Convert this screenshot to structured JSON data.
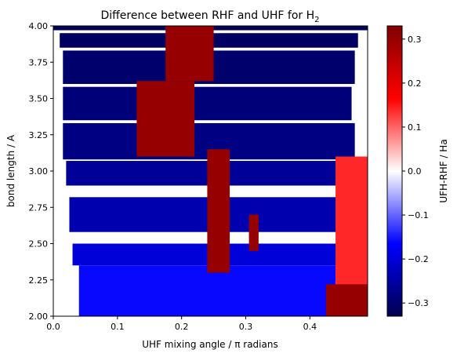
{
  "chart_data": {
    "type": "heatmap",
    "title_main": "Difference between RHF and UHF for H",
    "title_sub": "2",
    "xlabel": "UHF mixing angle / π radians",
    "ylabel": "bond length / A",
    "colorbar_label": "UFH-RHF / Ha",
    "xlim": [
      0.0,
      0.49
    ],
    "ylim": [
      2.0,
      4.0
    ],
    "xticks": [
      0.0,
      0.1,
      0.2,
      0.3,
      0.4
    ],
    "xtick_labels": [
      "0.0",
      "0.1",
      "0.2",
      "0.3",
      "0.4"
    ],
    "yticks": [
      2.0,
      2.25,
      2.5,
      2.75,
      3.0,
      3.25,
      3.5,
      3.75,
      4.0
    ],
    "ytick_labels": [
      "2.00",
      "2.25",
      "2.50",
      "2.75",
      "3.00",
      "3.25",
      "3.50",
      "3.75",
      "4.00"
    ],
    "colorbar_range": [
      -0.33,
      0.33
    ],
    "colorbar_ticks": [
      -0.3,
      -0.2,
      -0.1,
      0.0,
      0.1,
      0.2,
      0.3
    ],
    "colorbar_tick_labels": [
      "−0.3",
      "−0.2",
      "−0.1",
      "0.0",
      "0.1",
      "0.2",
      "0.3"
    ],
    "colormap": "seismic",
    "colormap_stops": [
      "#00004d",
      "#0000ff",
      "#ffffff",
      "#ff0000",
      "#800000"
    ],
    "regions": [
      {
        "x": [
          0.0,
          0.49
        ],
        "y": [
          3.97,
          4.0
        ],
        "value": -0.32
      },
      {
        "x": [
          0.01,
          0.475
        ],
        "y": [
          3.85,
          3.95
        ],
        "value": -0.31
      },
      {
        "x": [
          0.015,
          0.47
        ],
        "y": [
          3.6,
          3.83
        ],
        "value": -0.3
      },
      {
        "x": [
          0.015,
          0.465
        ],
        "y": [
          3.35,
          3.58
        ],
        "value": -0.29
      },
      {
        "x": [
          0.015,
          0.47
        ],
        "y": [
          3.08,
          3.33
        ],
        "value": -0.28
      },
      {
        "x": [
          0.02,
          0.47
        ],
        "y": [
          2.9,
          3.07
        ],
        "value": -0.26
      },
      {
        "x": [
          0.025,
          0.45
        ],
        "y": [
          2.58,
          2.82
        ],
        "value": -0.24
      },
      {
        "x": [
          0.03,
          0.45
        ],
        "y": [
          2.35,
          2.5
        ],
        "value": -0.2
      },
      {
        "x": [
          0.04,
          0.44
        ],
        "y": [
          2.0,
          2.35
        ],
        "value": -0.16
      },
      {
        "x": [
          0.44,
          0.49
        ],
        "y": [
          2.0,
          3.1
        ],
        "value": 0.14
      },
      {
        "x": [
          0.425,
          0.49
        ],
        "y": [
          2.0,
          2.22
        ],
        "value": 0.3
      },
      {
        "x": [
          0.13,
          0.22
        ],
        "y": [
          3.1,
          3.62
        ],
        "value": 0.3
      },
      {
        "x": [
          0.175,
          0.25
        ],
        "y": [
          3.62,
          4.0
        ],
        "value": 0.3
      },
      {
        "x": [
          0.24,
          0.275
        ],
        "y": [
          2.3,
          3.15
        ],
        "value": 0.3
      },
      {
        "x": [
          0.305,
          0.32
        ],
        "y": [
          2.45,
          2.7
        ],
        "value": 0.3
      }
    ]
  }
}
